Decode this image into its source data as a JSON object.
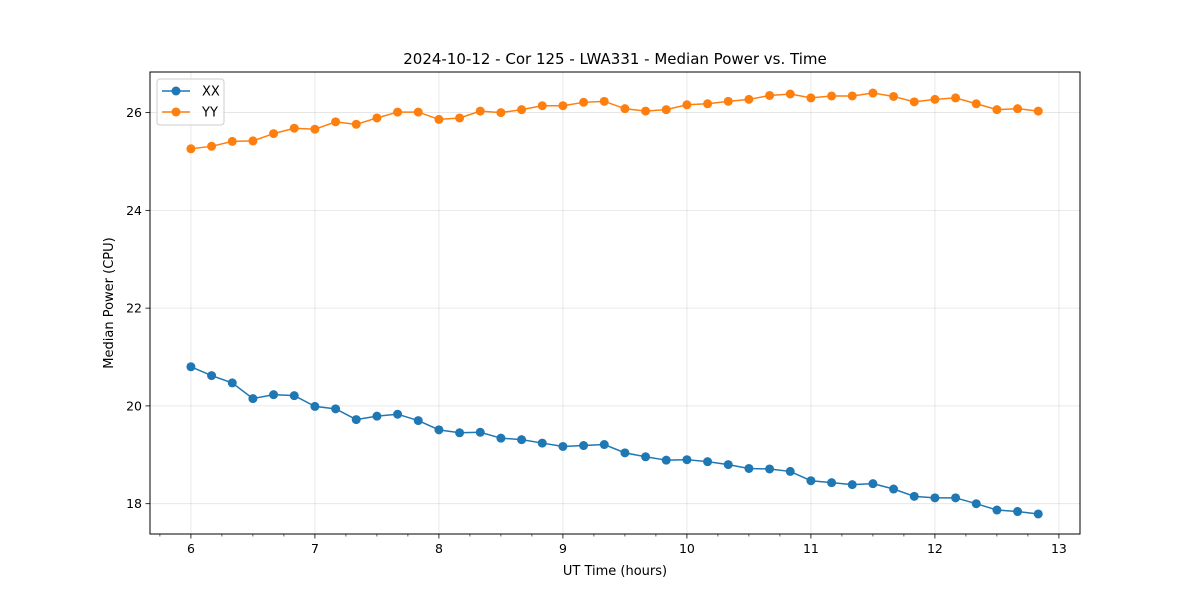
{
  "chart_data": {
    "type": "line",
    "title": "2024-10-12 - Cor 125 - LWA331 - Median Power vs. Time",
    "xlabel": "UT Time (hours)",
    "ylabel": "Median Power (CPU)",
    "xlim": [
      5.67,
      13.17
    ],
    "ylim": [
      17.38,
      26.83
    ],
    "x_ticks": [
      6,
      7,
      8,
      9,
      10,
      11,
      12,
      13
    ],
    "x_tick_labels": [
      "6",
      "7",
      "8",
      "9",
      "10",
      "11",
      "12",
      "13"
    ],
    "y_ticks": [
      18,
      20,
      22,
      24,
      26
    ],
    "y_tick_labels": [
      "18",
      "20",
      "22",
      "24",
      "26"
    ],
    "grid": true,
    "legend_position": "top-left",
    "x": [
      6.0,
      6.1667,
      6.3333,
      6.5,
      6.6667,
      6.8333,
      7.0,
      7.1667,
      7.3333,
      7.5,
      7.6667,
      7.8333,
      8.0,
      8.1667,
      8.3333,
      8.5,
      8.6667,
      8.8333,
      9.0,
      9.1667,
      9.3333,
      9.5,
      9.6667,
      9.8333,
      10.0,
      10.1667,
      10.3333,
      10.5,
      10.6667,
      10.8333,
      11.0,
      11.1667,
      11.3333,
      11.5,
      11.6667,
      11.8333,
      12.0,
      12.1667,
      12.3333,
      12.5,
      12.6667,
      12.8333
    ],
    "series": [
      {
        "name": "XX",
        "color": "#1f77b4",
        "values": [
          20.8,
          20.62,
          20.47,
          20.15,
          20.23,
          20.21,
          19.99,
          19.94,
          19.72,
          19.79,
          19.83,
          19.7,
          19.51,
          19.45,
          19.46,
          19.34,
          19.31,
          19.24,
          19.17,
          19.19,
          19.21,
          19.04,
          18.96,
          18.89,
          18.9,
          18.86,
          18.8,
          18.72,
          18.71,
          18.66,
          18.47,
          18.43,
          18.39,
          18.41,
          18.3,
          18.15,
          18.12,
          18.12,
          18.0,
          17.87,
          17.84,
          17.79
        ]
      },
      {
        "name": "YY",
        "color": "#ff7f0e",
        "values": [
          25.26,
          25.31,
          25.41,
          25.42,
          25.57,
          25.68,
          25.66,
          25.81,
          25.76,
          25.89,
          26.01,
          26.01,
          25.86,
          25.89,
          26.03,
          26.0,
          26.06,
          26.14,
          26.14,
          26.21,
          26.23,
          26.08,
          26.03,
          26.06,
          26.16,
          26.18,
          26.23,
          26.27,
          26.35,
          26.38,
          26.3,
          26.34,
          26.34,
          26.4,
          26.33,
          26.22,
          26.27,
          26.3,
          26.18,
          26.06,
          26.08,
          26.03
        ]
      }
    ]
  }
}
